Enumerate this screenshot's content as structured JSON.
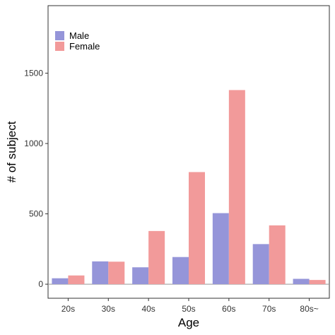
{
  "chart_data": {
    "type": "bar",
    "categories": [
      "20s",
      "30s",
      "40s",
      "50s",
      "60s",
      "70s",
      "80s~"
    ],
    "series": [
      {
        "name": "Male",
        "values": [
          42,
          162,
          120,
          193,
          505,
          285,
          38
        ],
        "color": "#9595d9"
      },
      {
        "name": "Female",
        "values": [
          62,
          160,
          378,
          797,
          1380,
          418,
          30
        ],
        "color": "#f29a9a"
      }
    ],
    "xlabel": "Age",
    "ylabel": "# of subject",
    "ylim": [
      -100,
      1980
    ],
    "yticks": [
      0,
      500,
      1000,
      1500
    ],
    "grid": false,
    "legend_position": "top-left"
  }
}
